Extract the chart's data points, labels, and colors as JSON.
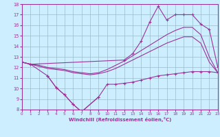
{
  "xlabel": "Windchill (Refroidissement éolien,°C)",
  "hours": [
    0,
    1,
    2,
    3,
    4,
    5,
    6,
    7,
    8,
    9,
    10,
    11,
    12,
    13,
    14,
    15,
    16,
    17,
    18,
    19,
    20,
    21,
    22,
    23
  ],
  "line_zigzag": [
    12.5,
    12.3,
    null,
    11.2,
    10.1,
    9.4,
    8.5,
    7.8,
    null,
    9.2,
    null,
    null,
    null,
    null,
    null,
    null,
    null,
    null,
    null,
    null,
    null,
    null,
    null,
    null
  ],
  "line_bottom": [
    null,
    null,
    null,
    11.2,
    10.1,
    9.4,
    8.5,
    7.8,
    null,
    9.2,
    10.4,
    10.4,
    10.5,
    10.6,
    10.8,
    11.0,
    11.2,
    11.3,
    11.4,
    11.5,
    11.6,
    11.6,
    11.6,
    11.5
  ],
  "line_top": [
    12.5,
    12.3,
    null,
    null,
    null,
    null,
    null,
    null,
    null,
    null,
    null,
    null,
    12.7,
    13.3,
    14.5,
    16.3,
    17.8,
    16.5,
    17.0,
    17.0,
    17.0,
    16.1,
    15.6,
    12.0
  ],
  "line_smooth1": [
    12.5,
    12.3,
    12.2,
    12.0,
    11.9,
    11.8,
    11.6,
    11.5,
    11.4,
    11.5,
    11.8,
    12.2,
    12.6,
    13.1,
    13.6,
    14.1,
    14.6,
    15.1,
    15.5,
    15.8,
    15.8,
    15.1,
    13.0,
    11.5
  ],
  "line_smooth2": [
    12.5,
    12.3,
    12.1,
    11.9,
    11.8,
    11.7,
    11.5,
    11.4,
    11.3,
    11.4,
    11.6,
    11.9,
    12.3,
    12.7,
    13.1,
    13.5,
    13.9,
    14.3,
    14.6,
    14.9,
    14.9,
    14.3,
    12.5,
    11.5
  ],
  "color": "#993399",
  "bg_color": "#cceeff",
  "grid_color": "#99bbcc",
  "ylim": [
    8,
    18
  ],
  "xlim": [
    0,
    23
  ],
  "yticks": [
    8,
    9,
    10,
    11,
    12,
    13,
    14,
    15,
    16,
    17,
    18
  ],
  "xticks": [
    0,
    1,
    2,
    3,
    4,
    5,
    6,
    7,
    8,
    9,
    10,
    11,
    12,
    13,
    14,
    15,
    16,
    17,
    18,
    19,
    20,
    21,
    22,
    23
  ]
}
